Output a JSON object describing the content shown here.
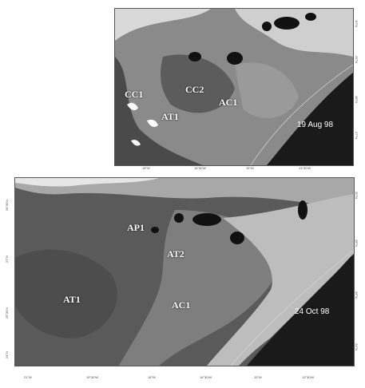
{
  "panels": [
    {
      "date": "19 Aug 98",
      "labels": [
        "CC1",
        "CC2",
        "AT1",
        "AC1"
      ],
      "x_ticks": [
        "18°W",
        "16°30'W",
        "15°W",
        "13°30'W"
      ],
      "y_ticks_right": [
        "30°N",
        "29°N",
        "28°N",
        "27°N"
      ]
    },
    {
      "date": "24 Oct 98",
      "labels": [
        "AP1",
        "AT2",
        "AT1",
        "AC1"
      ],
      "x_ticks": [
        "21°W",
        "19°30'W",
        "18°W",
        "16°30'W",
        "15°W",
        "13°30'W"
      ],
      "y_ticks_left": [
        "29°30'N",
        "27°N",
        "25°30'N",
        "24°N"
      ],
      "y_ticks_right": [
        "30°N",
        "28°N",
        "26°N",
        "24°N"
      ]
    }
  ]
}
